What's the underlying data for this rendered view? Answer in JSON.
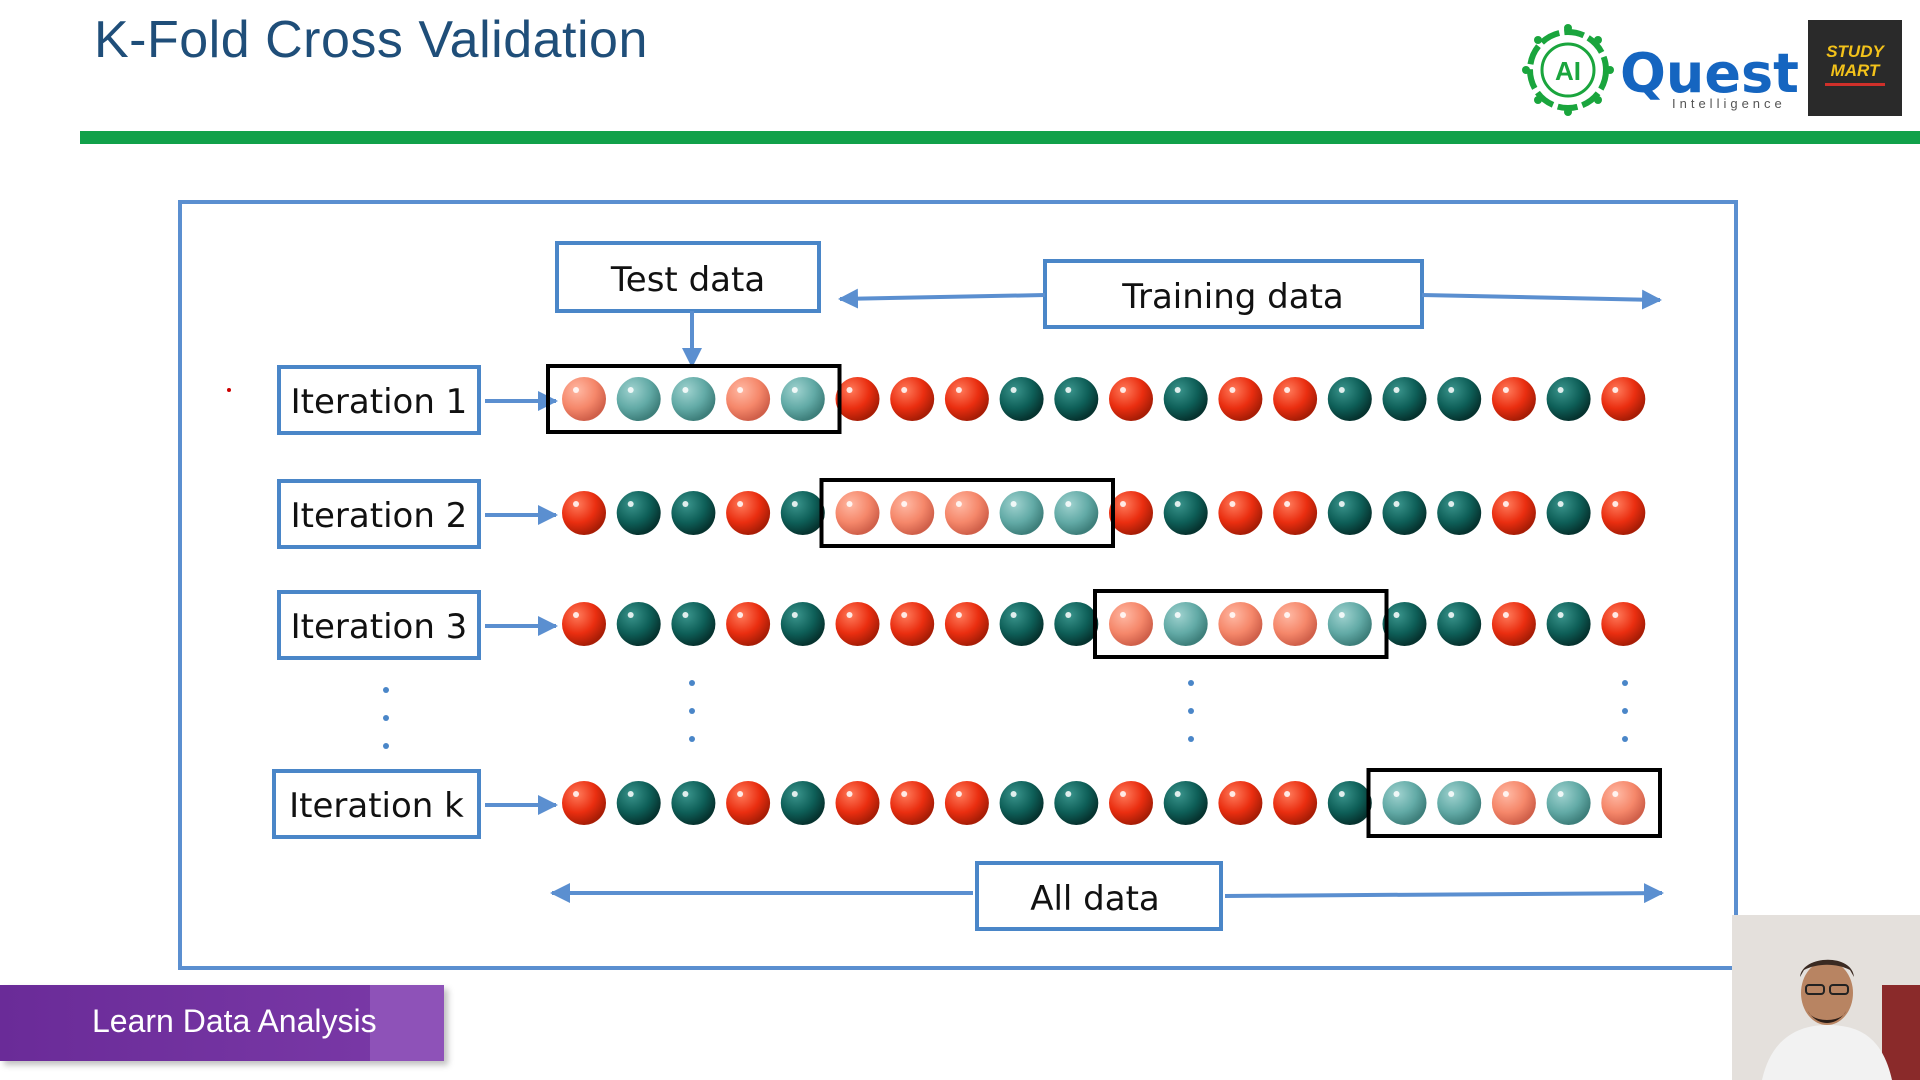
{
  "slide": {
    "title": "K-Fold Cross Validation",
    "banner_text": "Learn Data Analysis"
  },
  "logo": {
    "ai_badge": "AI",
    "quest": "Quest",
    "intelligence": "Intelligence",
    "studymart_line1": "STUDY",
    "studymart_line2": "MART"
  },
  "diagram": {
    "test_label": "Test data",
    "training_label": "Training data",
    "all_label": "All data",
    "iterations": [
      {
        "label": "Iteration 1",
        "test_fold": 0
      },
      {
        "label": "Iteration 2",
        "test_fold": 1
      },
      {
        "label": "Iteration 3",
        "test_fold": 2
      },
      {
        "label": "Iteration k",
        "test_fold": 3
      }
    ],
    "ball_classes": [
      "r",
      "t",
      "t",
      "r",
      "t",
      "r",
      "r",
      "r",
      "t",
      "t",
      "r",
      "t",
      "r",
      "r",
      "t",
      "t",
      "t",
      "r",
      "t",
      "r"
    ],
    "fold_size": 5,
    "colors": {
      "red": "#ea2e10",
      "teal": "#0e5f58",
      "red_light": "#f5876a",
      "teal_light": "#62aaa6",
      "arrow": "#5b8fd0",
      "label_border": "#4a86c8",
      "fold_border": "#000000"
    }
  },
  "icons": [
    "ai-quest-logo-icon",
    "studymart-logo-icon",
    "webcam-presenter-icon"
  ]
}
